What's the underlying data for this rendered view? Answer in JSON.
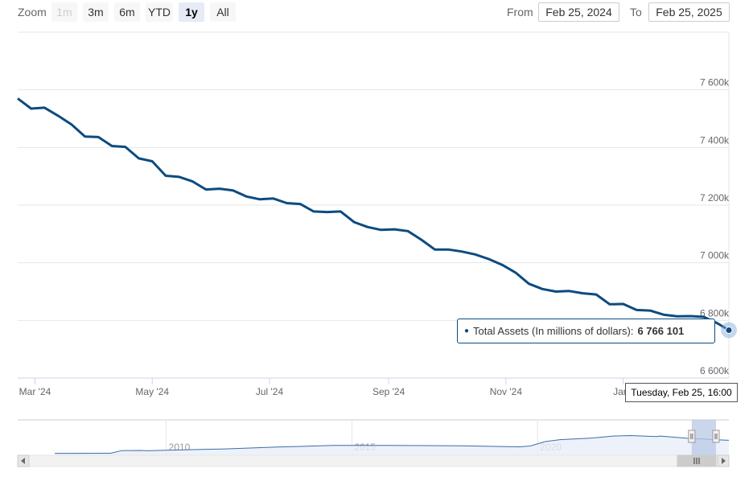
{
  "zoom": {
    "label": "Zoom",
    "buttons": [
      {
        "label": "1m",
        "state": "disabled"
      },
      {
        "label": "3m",
        "state": "normal"
      },
      {
        "label": "6m",
        "state": "normal"
      },
      {
        "label": "YTD",
        "state": "normal"
      },
      {
        "label": "1y",
        "state": "active"
      },
      {
        "label": "All",
        "state": "normal"
      }
    ]
  },
  "range": {
    "from_label": "From",
    "from_value": "Feb 25, 2024",
    "to_label": "To",
    "to_value": "Feb 25, 2025"
  },
  "tooltip": {
    "series_label": "Total Assets (In millions of dollars):",
    "value": "6 766 101"
  },
  "crosshair_label": "Tuesday, Feb 25, 16:00",
  "colors": {
    "series": "#0b4b80",
    "navigator_fill": "#e8eef7",
    "navigator_mask": "#b8c8e4"
  },
  "chart_data": {
    "type": "line",
    "series": [
      {
        "x": [
          "2024-02-21",
          "2024-02-28",
          "2024-03-06",
          "2024-03-13",
          "2024-03-20",
          "2024-03-27",
          "2024-04-03",
          "2024-04-10",
          "2024-04-17",
          "2024-04-24",
          "2024-05-01",
          "2024-05-08",
          "2024-05-15",
          "2024-05-22",
          "2024-05-29",
          "2024-06-05",
          "2024-06-12",
          "2024-06-19",
          "2024-06-26",
          "2024-07-03",
          "2024-07-10",
          "2024-07-17",
          "2024-07-24",
          "2024-07-31",
          "2024-08-07",
          "2024-08-14",
          "2024-08-21",
          "2024-08-28",
          "2024-09-04",
          "2024-09-11",
          "2024-09-18",
          "2024-09-25",
          "2024-10-02",
          "2024-10-09",
          "2024-10-16",
          "2024-10-23",
          "2024-10-30",
          "2024-11-06",
          "2024-11-13",
          "2024-11-20",
          "2024-11-27",
          "2024-12-04",
          "2024-12-11",
          "2024-12-18",
          "2024-12-25",
          "2025-01-01",
          "2025-01-08",
          "2025-01-15",
          "2025-01-22",
          "2025-01-29",
          "2025-02-05",
          "2025-02-12",
          "2025-02-19",
          "2025-02-25"
        ],
        "y": [
          7570,
          7535,
          7538,
          7510,
          7480,
          7438,
          7436,
          7405,
          7402,
          7362,
          7352,
          7302,
          7298,
          7282,
          7254,
          7257,
          7251,
          7230,
          7220,
          7223,
          7207,
          7204,
          7178,
          7176,
          7178,
          7141,
          7124,
          7114,
          7116,
          7110,
          7080,
          7046,
          7046,
          7039,
          7029,
          7013,
          6993,
          6966,
          6927,
          6909,
          6900,
          6902,
          6894,
          6890,
          6856,
          6857,
          6836,
          6834,
          6820,
          6814,
          6815,
          6812,
          6790,
          6766.101
        ]
      }
    ],
    "x_ticks": [
      "Mar '24",
      "May '24",
      "Jul '24",
      "Sep '24",
      "Nov '24",
      "Jan '"
    ],
    "y_ticks": [
      "6 600k",
      "6 800k",
      "7 000k",
      "7 200k",
      "7 400k",
      "7 600k"
    ],
    "ylim": [
      6600,
      7800
    ],
    "grid": true,
    "navigator": {
      "x_ticks": [
        "2010",
        "2015",
        "2020"
      ],
      "series": [
        {
          "year": 2007.0,
          "y": 880
        },
        {
          "year": 2008.5,
          "y": 900
        },
        {
          "year": 2008.8,
          "y": 2100
        },
        {
          "year": 2009.3,
          "y": 2200
        },
        {
          "year": 2009.5,
          "y": 2050
        },
        {
          "year": 2010.0,
          "y": 2300
        },
        {
          "year": 2011.5,
          "y": 2850
        },
        {
          "year": 2013.0,
          "y": 3700
        },
        {
          "year": 2014.5,
          "y": 4450
        },
        {
          "year": 2016.0,
          "y": 4480
        },
        {
          "year": 2018.0,
          "y": 4300
        },
        {
          "year": 2019.5,
          "y": 3800
        },
        {
          "year": 2019.8,
          "y": 4200
        },
        {
          "year": 2020.2,
          "y": 6200
        },
        {
          "year": 2020.6,
          "y": 7050
        },
        {
          "year": 2021.5,
          "y": 7800
        },
        {
          "year": 2022.0,
          "y": 8650
        },
        {
          "year": 2022.5,
          "y": 8900
        },
        {
          "year": 2023.2,
          "y": 8450
        },
        {
          "year": 2023.3,
          "y": 8700
        },
        {
          "year": 2024.0,
          "y": 7700
        },
        {
          "year": 2025.15,
          "y": 6766
        }
      ]
    }
  }
}
